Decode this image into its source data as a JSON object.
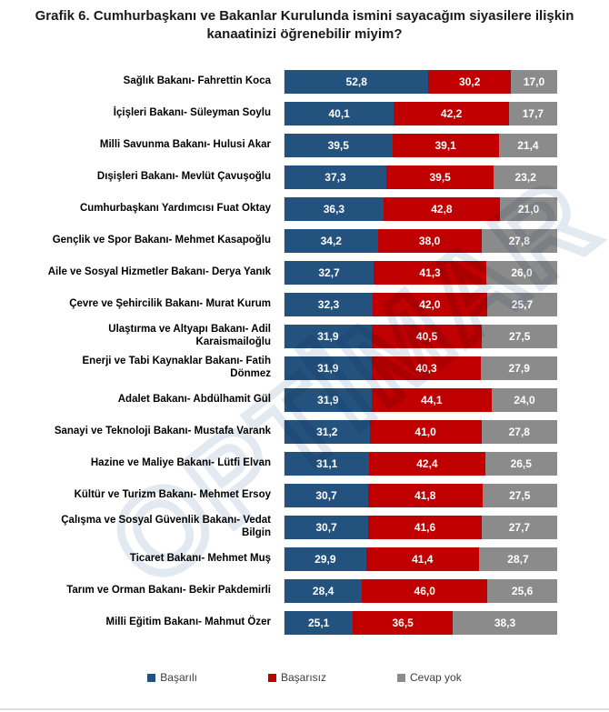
{
  "title": "Grafik 6. Cumhurbaşkanı ve Bakanlar Kurulunda ismini sayacağım siyasilere ilişkin kanaatinizi öğrenebilir miyim?",
  "watermark": "OPTİMAR",
  "colors": {
    "basarili": "#24527E",
    "basarisiz": "#C00000",
    "cevap_yok": "#8B8B8B",
    "axis_line": "#e2e2e2",
    "bottom_rule": "#d8dde3"
  },
  "legend": [
    {
      "label": "Başarılı",
      "color": "#24527E"
    },
    {
      "label": "Başarısız",
      "color": "#C00000"
    },
    {
      "label": "Cevap yok",
      "color": "#8B8B8B"
    }
  ],
  "rows": [
    {
      "label": "Sağlık Bakanı- Fahrettin Koca",
      "values": [
        "52,8",
        "30,2",
        "17,0"
      ]
    },
    {
      "label": "İçişleri Bakanı- Süleyman Soylu",
      "values": [
        "40,1",
        "42,2",
        "17,7"
      ]
    },
    {
      "label": "Milli Savunma Bakanı- Hulusi Akar",
      "values": [
        "39,5",
        "39,1",
        "21,4"
      ]
    },
    {
      "label": "Dışişleri Bakanı- Mevlüt Çavuşoğlu",
      "values": [
        "37,3",
        "39,5",
        "23,2"
      ]
    },
    {
      "label": "Cumhurbaşkanı Yardımcısı Fuat Oktay",
      "values": [
        "36,3",
        "42,8",
        "21,0"
      ]
    },
    {
      "label": "Gençlik ve Spor Bakanı- Mehmet Kasapoğlu",
      "values": [
        "34,2",
        "38,0",
        "27,8"
      ]
    },
    {
      "label": "Aile ve Sosyal Hizmetler Bakanı- Derya Yanık",
      "values": [
        "32,7",
        "41,3",
        "26,0"
      ]
    },
    {
      "label": "Çevre ve Şehircilik Bakanı- Murat Kurum",
      "values": [
        "32,3",
        "42,0",
        "25,7"
      ]
    },
    {
      "label": "Ulaştırma ve Altyapı Bakanı- Adil\nKaraismailoğlu",
      "values": [
        "31,9",
        "40,5",
        "27,5"
      ]
    },
    {
      "label": "Enerji ve Tabi Kaynaklar Bakanı- Fatih\nDönmez",
      "values": [
        "31,9",
        "40,3",
        "27,9"
      ]
    },
    {
      "label": "Adalet Bakanı- Abdülhamit Gül",
      "values": [
        "31,9",
        "44,1",
        "24,0"
      ]
    },
    {
      "label": "Sanayi ve Teknoloji Bakanı- Mustafa Varank",
      "values": [
        "31,2",
        "41,0",
        "27,8"
      ]
    },
    {
      "label": "Hazine ve Maliye Bakanı- Lütfi Elvan",
      "values": [
        "31,1",
        "42,4",
        "26,5"
      ]
    },
    {
      "label": "Kültür ve Turizm Bakanı- Mehmet Ersoy",
      "values": [
        "30,7",
        "41,8",
        "27,5"
      ]
    },
    {
      "label": "Çalışma ve Sosyal Güvenlik Bakanı- Vedat\nBilgin",
      "values": [
        "30,7",
        "41,6",
        "27,7"
      ]
    },
    {
      "label": "Ticaret Bakanı- Mehmet Muş",
      "values": [
        "29,9",
        "41,4",
        "28,7"
      ]
    },
    {
      "label": "Tarım ve Orman Bakanı- Bekir Pakdemirli",
      "values": [
        "28,4",
        "46,0",
        "25,6"
      ]
    },
    {
      "label": "Milli Eğitim Bakanı- Mahmut Özer",
      "values": [
        "25,1",
        "36,5",
        "38,3"
      ]
    }
  ],
  "chart_data": {
    "type": "bar",
    "orientation": "horizontal",
    "stacked": true,
    "unit": "percent",
    "x_max": 100,
    "grid": false,
    "legend_position": "bottom",
    "title": "Grafik 6. Cumhurbaşkanı ve Bakanlar Kurulunda ismini sayacağım siyasilere ilişkin kanaatinizi öğrenebilir miyim?",
    "categories": [
      "Sağlık Bakanı- Fahrettin Koca",
      "İçişleri Bakanı- Süleyman Soylu",
      "Milli Savunma Bakanı- Hulusi Akar",
      "Dışişleri Bakanı- Mevlüt Çavuşoğlu",
      "Cumhurbaşkanı Yardımcısı Fuat Oktay",
      "Gençlik ve Spor Bakanı- Mehmet Kasapoğlu",
      "Aile ve Sosyal Hizmetler Bakanı- Derya Yanık",
      "Çevre ve Şehircilik Bakanı- Murat Kurum",
      "Ulaştırma ve Altyapı Bakanı- Adil Karaismailoğlu",
      "Enerji ve Tabi Kaynaklar Bakanı- Fatih Dönmez",
      "Adalet Bakanı- Abdülhamit Gül",
      "Sanayi ve Teknoloji Bakanı- Mustafa Varank",
      "Hazine ve Maliye Bakanı- Lütfi Elvan",
      "Kültür ve Turizm Bakanı- Mehmet Ersoy",
      "Çalışma ve Sosyal Güvenlik Bakanı- Vedat Bilgin",
      "Ticaret Bakanı- Mehmet Muş",
      "Tarım ve Orman Bakanı- Bekir Pakdemirli",
      "Milli Eğitim Bakanı- Mahmut Özer"
    ],
    "series": [
      {
        "name": "Başarılı",
        "color": "#24527E",
        "values": [
          52.8,
          40.1,
          39.5,
          37.3,
          36.3,
          34.2,
          32.7,
          32.3,
          31.9,
          31.9,
          31.9,
          31.2,
          31.1,
          30.7,
          30.7,
          29.9,
          28.4,
          25.1
        ]
      },
      {
        "name": "Başarısız",
        "color": "#C00000",
        "values": [
          30.2,
          42.2,
          39.1,
          39.5,
          42.8,
          38.0,
          41.3,
          42.0,
          40.5,
          40.3,
          44.1,
          41.0,
          42.4,
          41.8,
          41.6,
          41.4,
          46.0,
          36.5
        ]
      },
      {
        "name": "Cevap yok",
        "color": "#8B8B8B",
        "values": [
          17.0,
          17.7,
          21.4,
          23.2,
          21.0,
          27.8,
          26.0,
          25.7,
          27.5,
          27.9,
          24.0,
          27.8,
          26.5,
          27.5,
          27.7,
          28.7,
          25.6,
          38.3
        ]
      }
    ]
  }
}
